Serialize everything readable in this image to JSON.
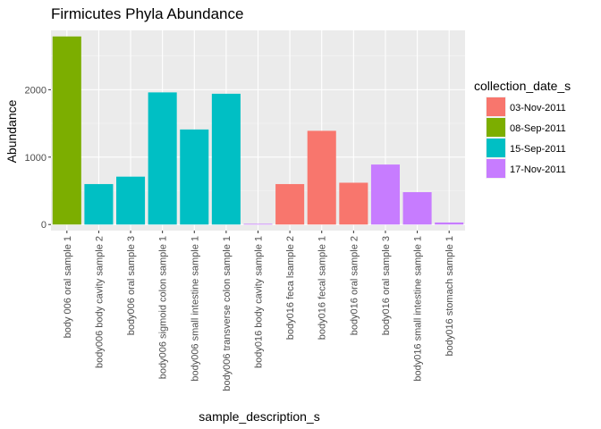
{
  "chart_data": {
    "type": "bar",
    "title": "Firmicutes Phyla Abundance",
    "xlabel": "sample_description_s",
    "ylabel": "Abundance",
    "ylim": [
      -90,
      2880
    ],
    "yticks": [
      0,
      1000,
      2000
    ],
    "ytick_labels": [
      "0",
      "1000",
      "2000"
    ],
    "grid": true,
    "legend_position": "right",
    "legend_title": "collection_date_s",
    "legend": [
      {
        "label": "03-Nov-2011",
        "color": "#F8766D"
      },
      {
        "label": "08-Sep-2011",
        "color": "#7CAE00"
      },
      {
        "label": "15-Sep-2011",
        "color": "#00BFC4"
      },
      {
        "label": "17-Nov-2011",
        "color": "#C77CFF"
      }
    ],
    "categories": [
      "body 006 oral sample 1",
      "body006 body cavity sample 2",
      "body006 oral sample 3",
      "body006 sigmoid colon sample 1",
      "body006 small intestine sample 1",
      "body006 transverse colon sample 1",
      "body016 body cavity sample 1",
      "body016 feca lsample 2",
      "body016 fecal sample 1",
      "body016 oral sample 2",
      "body016 oral sample 3",
      "body016 small intestine sample 1",
      "body016 stomach sample 1"
    ],
    "values": [
      2790,
      600,
      710,
      1960,
      1410,
      1940,
      10,
      600,
      1390,
      620,
      890,
      480,
      30
    ],
    "bar_colors": [
      "#7CAE00",
      "#00BFC4",
      "#00BFC4",
      "#00BFC4",
      "#00BFC4",
      "#00BFC4",
      "#C77CFF",
      "#F8766D",
      "#F8766D",
      "#F8766D",
      "#C77CFF",
      "#C77CFF",
      "#C77CFF"
    ]
  }
}
